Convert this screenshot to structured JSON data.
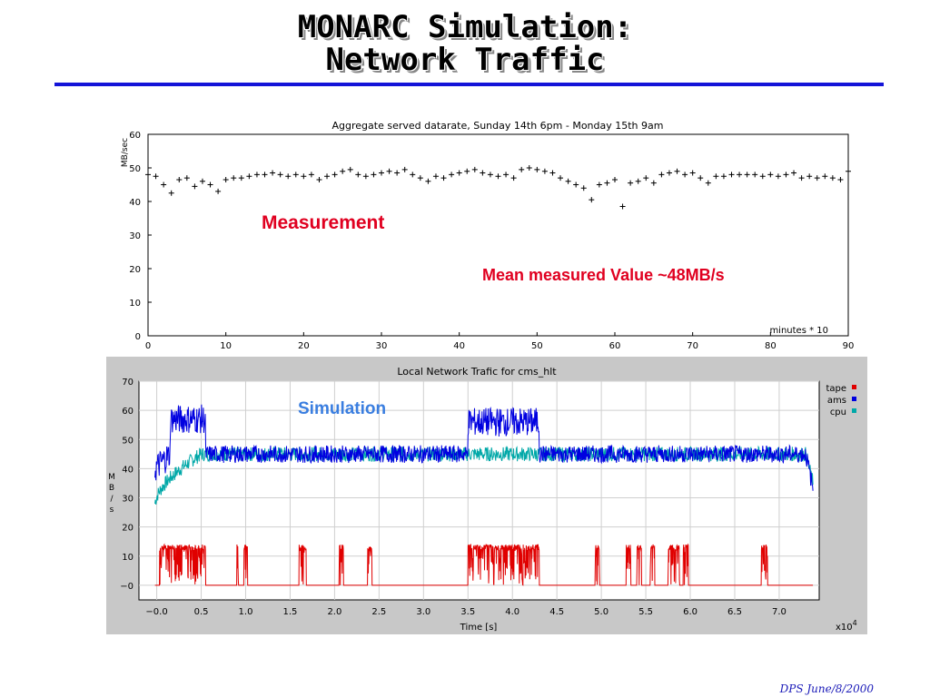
{
  "slide": {
    "title_line1": "MONARC Simulation:",
    "title_line2": "Network Traffic",
    "footer": "DPS June/8/2000",
    "accent_color": "#1414d8"
  },
  "annotations": {
    "measurement": "Measurement",
    "mean": "Mean measured Value ~48MB/s",
    "simulation": "Simulation",
    "measurement_color": "#e00020",
    "simulation_color": "#3a7ee0"
  },
  "chart_data": [
    {
      "type": "scatter",
      "title": "Aggregate served datarate, Sunday 14th 6pm - Monday 15th 9am",
      "xlabel": "minutes * 10",
      "ylabel": "MB/sec",
      "xlim": [
        0,
        90
      ],
      "ylim": [
        0,
        60
      ],
      "xticks": [
        0,
        10,
        20,
        30,
        40,
        50,
        60,
        70,
        80,
        90
      ],
      "yticks": [
        0,
        10,
        20,
        30,
        40,
        50,
        60
      ],
      "marker": "plus",
      "series": [
        {
          "x": [
            0,
            1,
            2,
            3,
            4,
            5,
            6,
            7,
            8,
            9,
            10,
            11,
            12,
            13,
            14,
            15,
            16,
            17,
            18,
            19,
            20,
            21,
            22,
            23,
            24,
            25,
            26,
            27,
            28,
            29,
            30,
            31,
            32,
            33,
            34,
            35,
            36,
            37,
            38,
            39,
            40,
            41,
            42,
            43,
            44,
            45,
            46,
            47,
            48,
            49,
            50,
            51,
            52,
            53,
            54,
            55,
            56,
            57,
            58,
            59,
            60,
            61,
            62,
            63,
            64,
            65,
            66,
            67,
            68,
            69,
            70,
            71,
            72,
            73,
            74,
            75,
            76,
            77,
            78,
            79,
            80,
            81,
            82,
            83,
            84,
            85,
            86,
            87,
            88,
            89,
            90
          ],
          "y": [
            48,
            47.5,
            45,
            42.5,
            46.5,
            47,
            44.5,
            46,
            45,
            43,
            46.5,
            47,
            47,
            47.5,
            48,
            48,
            48.5,
            48,
            47.5,
            48,
            47.5,
            48,
            46.5,
            47.5,
            48,
            49,
            49.5,
            48,
            47.5,
            48,
            48.5,
            49,
            48.5,
            49.5,
            48,
            47,
            46,
            47.5,
            47,
            48,
            48.5,
            49,
            49.5,
            48.5,
            48,
            47.5,
            48,
            47,
            49.5,
            50,
            49.5,
            49,
            48.5,
            47,
            46,
            45,
            44,
            40.5,
            45,
            45.5,
            46.5,
            38.5,
            45.5,
            46,
            47,
            45.5,
            48,
            48.5,
            49,
            48,
            48.5,
            47,
            45.5,
            47.5,
            47.5,
            48,
            48,
            48,
            48,
            47.5,
            48,
            47.5,
            48,
            48.5,
            47,
            47.5,
            47,
            47.5,
            47,
            46.5,
            49
          ]
        }
      ]
    },
    {
      "type": "line",
      "title": "Local Network Trafic for cms_hlt",
      "xlabel": "Time [s]",
      "ylabel": "MB/s",
      "x_multiplier": "x10",
      "x_multiplier_exp": "4",
      "xlim": [
        -0.2,
        7.45
      ],
      "ylim": [
        -5,
        70
      ],
      "xtick_labels": [
        "−0.0",
        "0.5",
        "1.0",
        "1.5",
        "2.0",
        "2.5",
        "3.0",
        "3.5",
        "4.0",
        "4.5",
        "5.0",
        "5.5",
        "6.0",
        "6.5",
        "7.0"
      ],
      "xtick_values": [
        0,
        0.5,
        1,
        1.5,
        2,
        2.5,
        3,
        3.5,
        4,
        4.5,
        5,
        5.5,
        6,
        6.5,
        7
      ],
      "ytick_labels": [
        "−0",
        "10",
        "20",
        "30",
        "40",
        "50",
        "60",
        "70"
      ],
      "ytick_values": [
        0,
        10,
        20,
        30,
        40,
        50,
        60,
        70
      ],
      "legend_position": "top-right",
      "series": [
        {
          "name": "tape",
          "color": "#e00000",
          "baseline": 0,
          "bursts": [
            [
              0.03,
              0.55
            ],
            [
              0.9,
              0.92
            ],
            [
              0.98,
              1.02
            ],
            [
              1.6,
              1.68
            ],
            [
              2.05,
              2.1
            ],
            [
              2.37,
              2.42
            ],
            [
              3.5,
              4.3
            ],
            [
              4.93,
              4.98
            ],
            [
              5.28,
              5.33
            ],
            [
              5.4,
              5.45
            ],
            [
              5.55,
              5.6
            ],
            [
              5.75,
              5.88
            ],
            [
              5.92,
              5.98
            ],
            [
              6.8,
              6.87
            ]
          ],
          "burst_level": 14
        },
        {
          "name": "ams",
          "color": "#0000e0",
          "plateau": 45,
          "ramp_start": [
            0.0,
            40
          ],
          "peak_segments": [
            [
              0.15,
              0.55,
              57
            ],
            [
              3.5,
              4.3,
              56
            ]
          ],
          "end_tail": [
            7.3,
            33
          ]
        },
        {
          "name": "cpu",
          "color": "#00a8a8",
          "plateau": 45,
          "ramp_start": [
            0.0,
            28
          ],
          "ramp_end_x": 0.5,
          "end_tail": [
            7.3,
            35
          ]
        }
      ]
    }
  ]
}
